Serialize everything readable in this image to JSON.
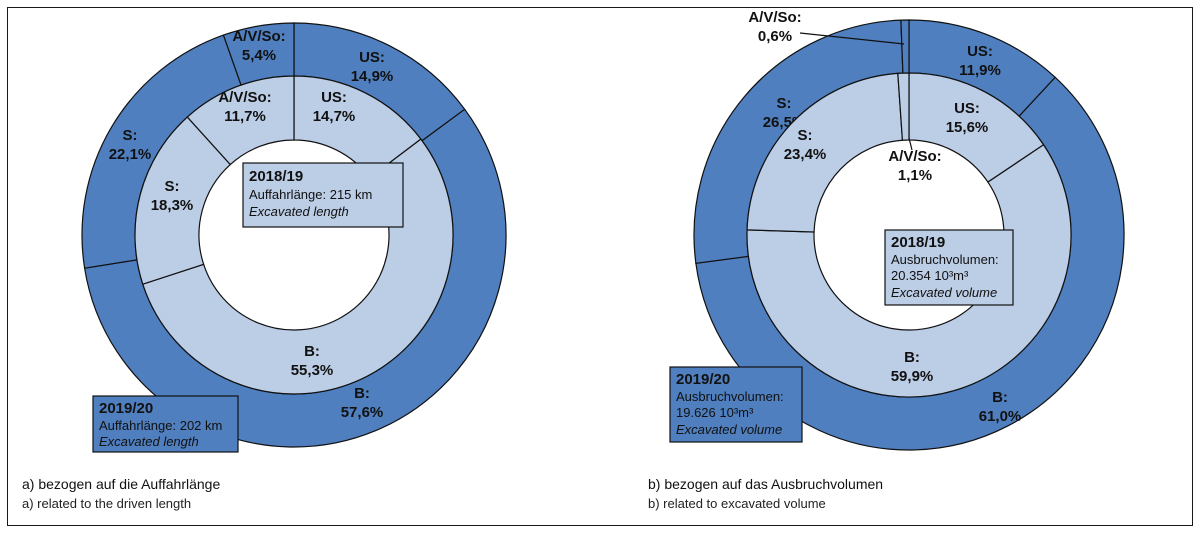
{
  "chart_data": [
    {
      "type": "donut",
      "caption_de": "a) bezogen auf die Auffahrlänge",
      "caption_en": "a) related to the driven length",
      "outer": {
        "year": "2019/20",
        "measure_de": "Auffahrlänge: 202 km",
        "measure_en": "Excavated length",
        "categories": [
          "US",
          "B",
          "S",
          "A/V/So"
        ],
        "values": [
          14.9,
          57.6,
          22.1,
          5.4
        ],
        "value_labels": [
          "US:\n14,9%",
          "B:\n57,6%",
          "S:\n22,1%",
          "A/V/So:\n5,4%"
        ]
      },
      "inner": {
        "year": "2018/19",
        "measure_de": "Auffahrlänge: 215 km",
        "measure_en": "Excavated length",
        "categories": [
          "US",
          "B",
          "S",
          "A/V/So"
        ],
        "values": [
          14.7,
          55.3,
          18.3,
          11.7
        ],
        "value_labels": [
          "US:\n14,7%",
          "B:\n55,3%",
          "S:\n18,3%",
          "A/V/So:\n11,7%"
        ]
      }
    },
    {
      "type": "donut",
      "caption_de": "b) bezogen auf das Ausbruchvolumen",
      "caption_en": "b) related to excavated volume",
      "outer": {
        "year": "2019/20",
        "measure_de": "Ausbruchvolumen:",
        "measure_value": "19.626 10³m³",
        "measure_en": "Excavated volume",
        "categories": [
          "US",
          "B",
          "S",
          "A/V/So"
        ],
        "values": [
          11.9,
          61.0,
          26.5,
          0.6
        ],
        "value_labels": [
          "US:\n11,9%",
          "B:\n61,0%",
          "S:\n26,5%",
          "A/V/So:\n0,6%"
        ]
      },
      "inner": {
        "year": "2018/19",
        "measure_de": "Ausbruchvolumen:",
        "measure_value": "20.354 10³m³",
        "measure_en": "Excavated volume",
        "categories": [
          "US",
          "B",
          "S",
          "A/V/So"
        ],
        "values": [
          15.6,
          59.9,
          23.4,
          1.1
        ],
        "value_labels": [
          "US:\n15,6%",
          "B:\n59,9%",
          "S:\n23,4%",
          "A/V/So:\n1,1%"
        ]
      }
    }
  ],
  "colors": {
    "outer_ring": "#4f7fbf",
    "inner_ring": "#bccde6",
    "box_outer": "#4f7fbf",
    "box_inner": "#bccde6",
    "stroke": "#111111"
  }
}
